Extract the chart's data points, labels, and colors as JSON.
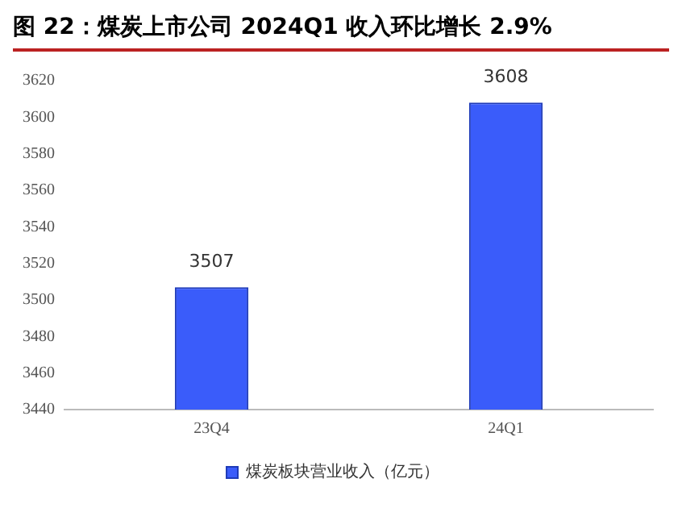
{
  "chart_data": {
    "type": "bar",
    "title": "图 22：煤炭上市公司 2024Q1 收入环比增长 2.9%",
    "categories": [
      "23Q4",
      "24Q1"
    ],
    "series": [
      {
        "name": "煤炭板块营业收入（亿元）",
        "color": "#3a5cfa",
        "values": [
          3507,
          3608
        ]
      }
    ],
    "ylim": [
      3440,
      3620
    ],
    "yticks": [
      3440,
      3460,
      3480,
      3500,
      3520,
      3540,
      3560,
      3580,
      3600,
      3620
    ],
    "grid": false,
    "legend": "bottom",
    "data_labels": true
  }
}
